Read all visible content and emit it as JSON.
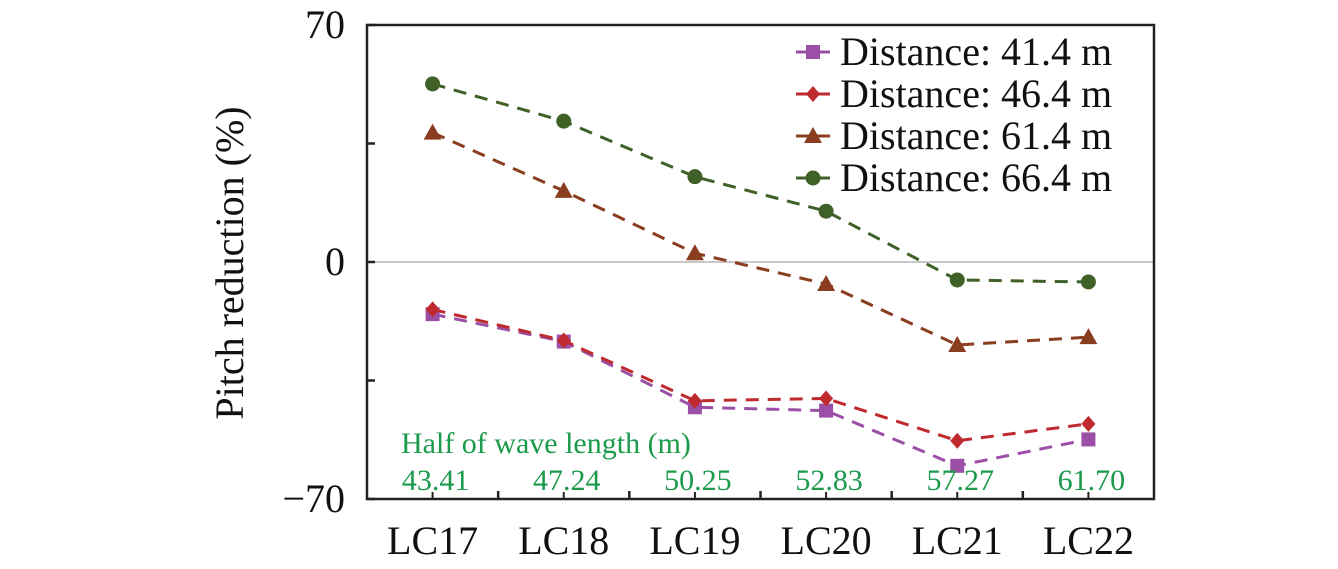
{
  "chart_data": {
    "type": "line",
    "title": "",
    "xlabel": "",
    "ylabel": "Pitch reduction (%)",
    "categories": [
      "LC17",
      "LC18",
      "LC19",
      "LC20",
      "LC21",
      "LC22"
    ],
    "ylim": [
      -70,
      70
    ],
    "yticks": [
      70,
      35,
      0,
      -35,
      -70
    ],
    "ytick_labels": [
      "70",
      "",
      "0",
      "",
      "−70"
    ],
    "zero_line": true,
    "grid": false,
    "legend_position": "top-right",
    "series": [
      {
        "name": "Distance: 41.4 m",
        "color": "#9b4fa6",
        "marker": "square",
        "values": [
          -15.4,
          -23.5,
          -42.9,
          -43.9,
          -60.2,
          -52.4
        ]
      },
      {
        "name": "Distance: 46.4 m",
        "color": "#be2a2e",
        "marker": "diamond",
        "values": [
          -14.0,
          -23.2,
          -41.0,
          -40.3,
          -52.8,
          -47.8
        ]
      },
      {
        "name": "Distance: 61.4 m",
        "color": "#8a3d1f",
        "marker": "triangle",
        "values": [
          38.2,
          21.0,
          2.6,
          -6.5,
          -24.5,
          -22.2
        ]
      },
      {
        "name": "Distance: 66.4 m",
        "color": "#3f6128",
        "marker": "circle",
        "values": [
          52.6,
          41.6,
          25.2,
          15.0,
          -5.3,
          -5.9
        ]
      }
    ],
    "annotation": {
      "title": "Half of wave length (m)",
      "color": "#1a9a4a",
      "values": [
        "43.41",
        "47.24",
        "50.25",
        "52.83",
        "57.27",
        "61.70"
      ]
    }
  }
}
